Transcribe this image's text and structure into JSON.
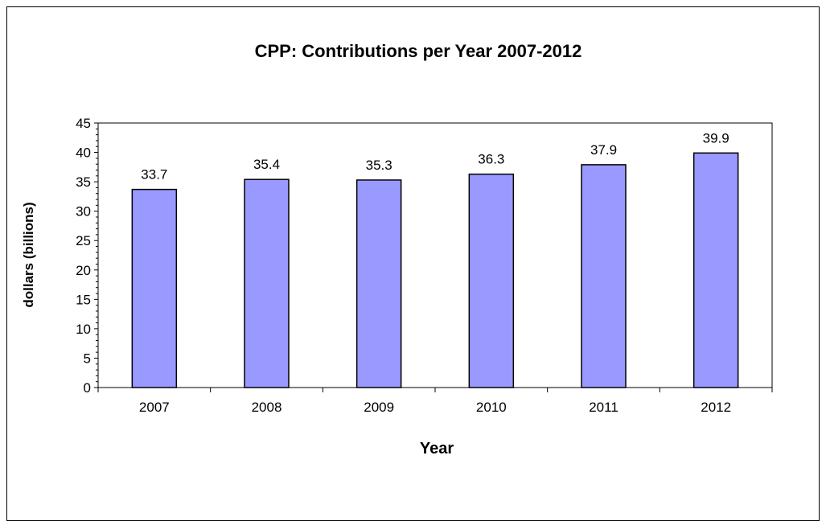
{
  "chart_data": {
    "type": "bar",
    "title": "CPP: Contributions  per Year 2007-2012",
    "xlabel": "Year",
    "ylabel": "dollars (billions)",
    "categories": [
      "2007",
      "2008",
      "2009",
      "2010",
      "2011",
      "2012"
    ],
    "values": [
      33.7,
      35.4,
      35.3,
      36.3,
      37.9,
      39.9
    ],
    "data_labels": [
      "33.7",
      "35.4",
      "35.3",
      "36.3",
      "37.9",
      "39.9"
    ],
    "y_ticks": [
      "0",
      "5",
      "10",
      "15",
      "20",
      "25",
      "30",
      "35",
      "40",
      "45"
    ],
    "ylim": [
      0,
      45
    ],
    "grid": false,
    "legend": "none",
    "bar_color": "#9999FF",
    "bar_edge_color": "#000000"
  }
}
